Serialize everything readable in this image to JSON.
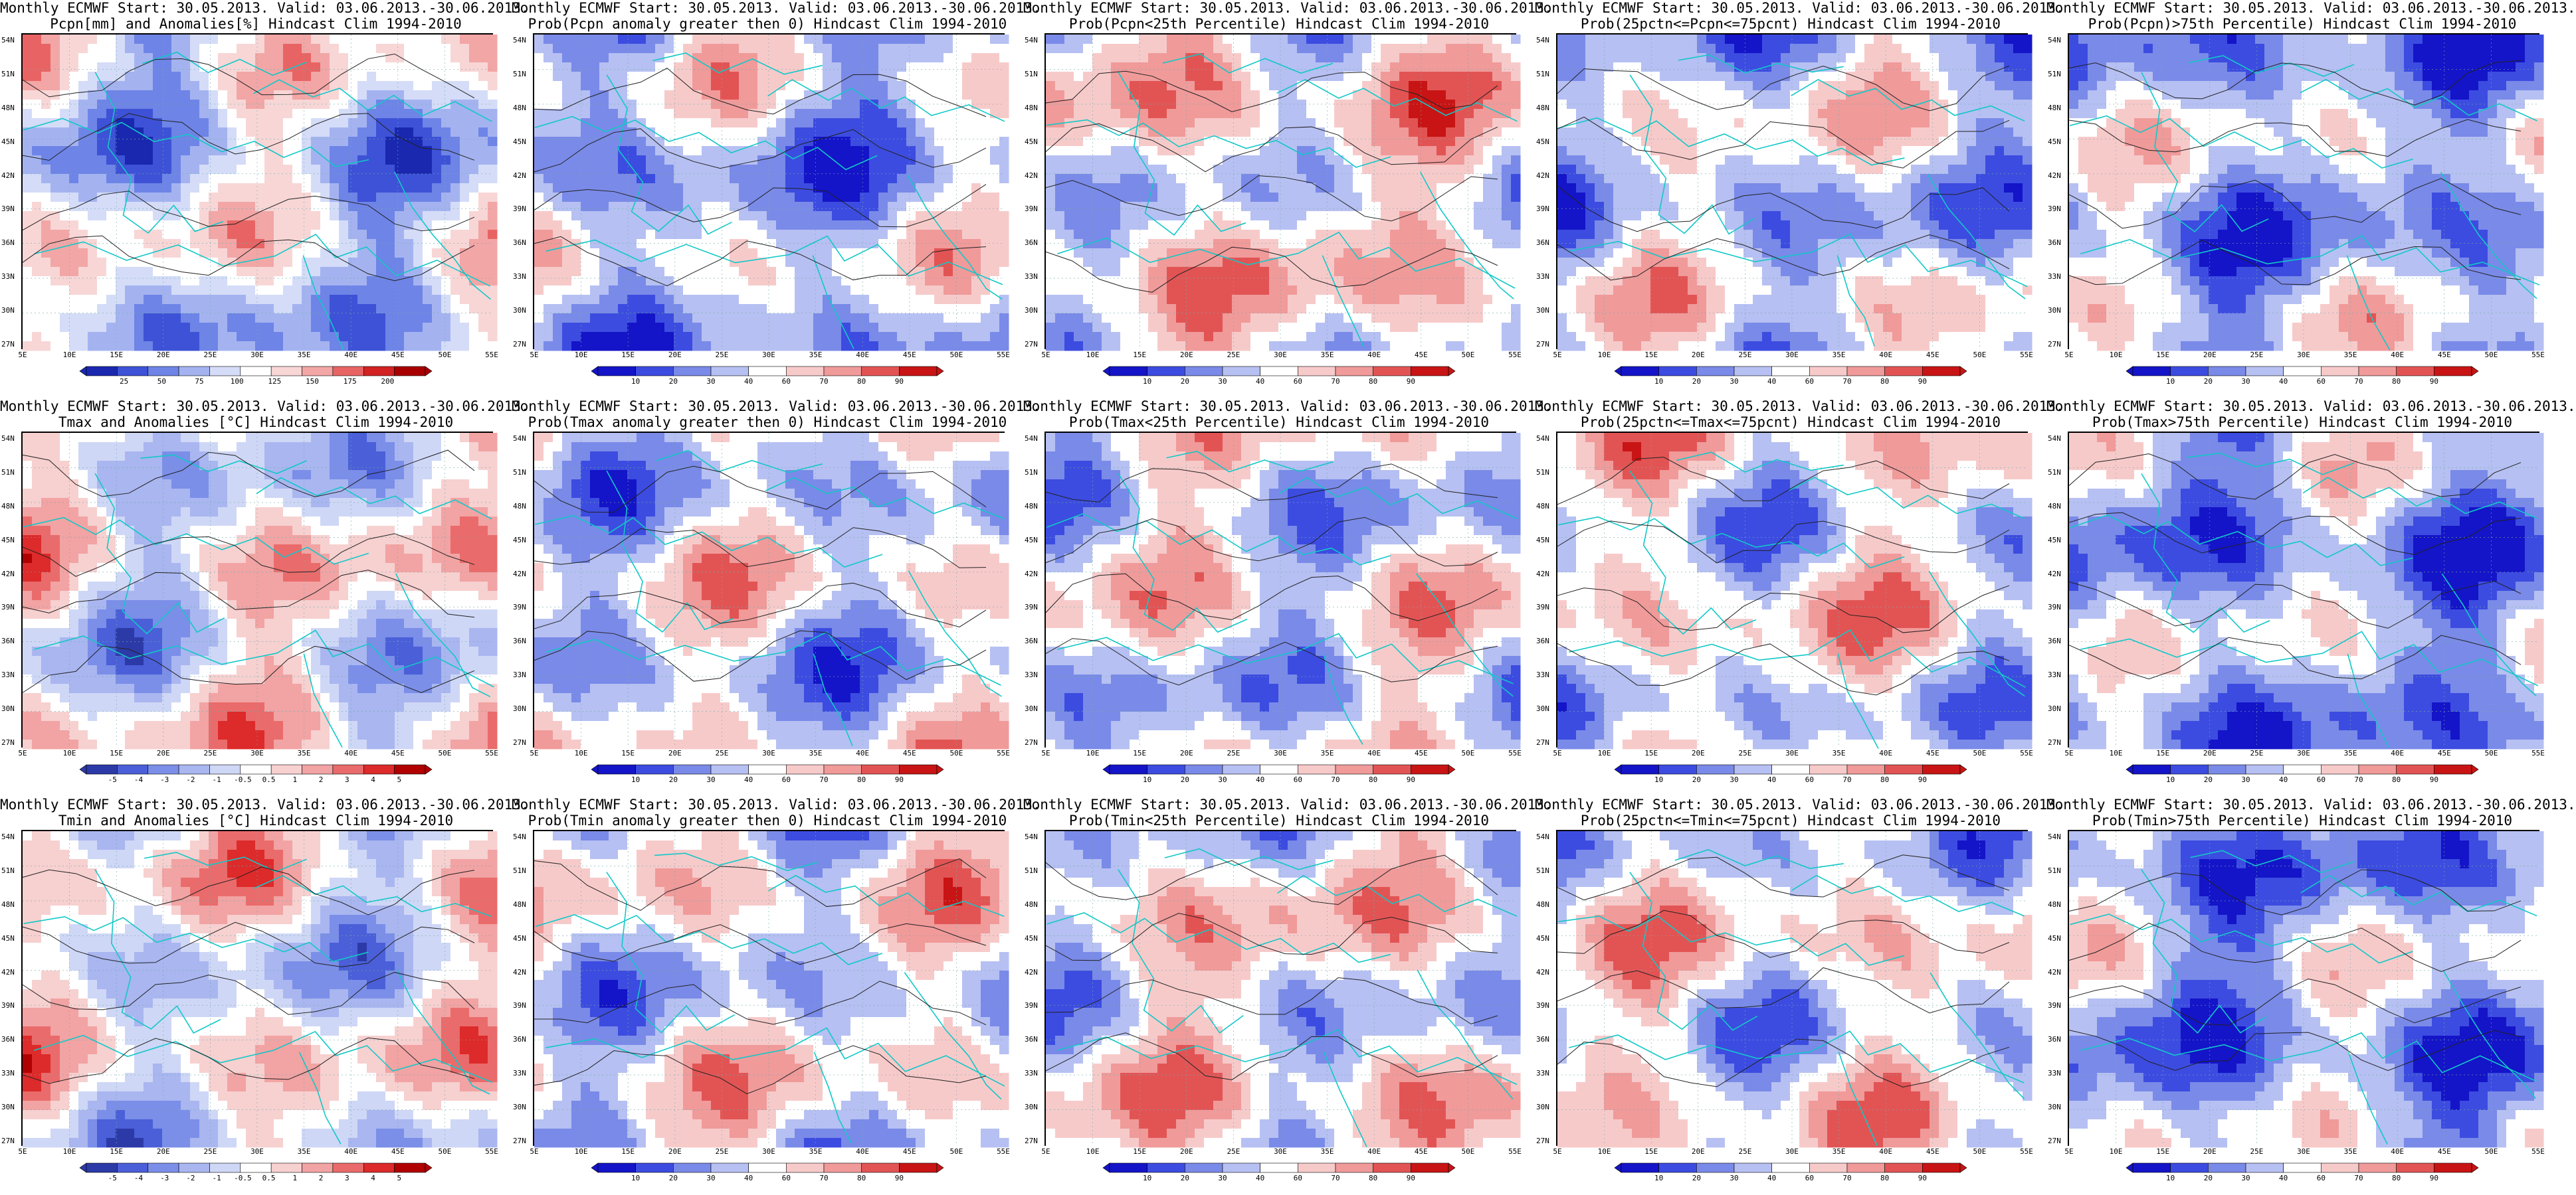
{
  "lat_ticks": [
    "54N",
    "51N",
    "48N",
    "45N",
    "42N",
    "39N",
    "36N",
    "33N",
    "30N",
    "27N"
  ],
  "lon_ticks": [
    "5E",
    "10E",
    "15E",
    "20E",
    "25E",
    "30E",
    "35E",
    "40E",
    "45E",
    "50E",
    "55E"
  ],
  "palettes": {
    "anom": [
      "#2c3aa8",
      "#4a5fd8",
      "#7b8ee8",
      "#a9b6f0",
      "#cfd7f6",
      "#ffffff",
      "#f7d0d0",
      "#f2a3a3",
      "#ea6b6b",
      "#dd2a2a",
      "#b00000"
    ],
    "prob": [
      "#1414c8",
      "#3c4ce0",
      "#7a8ae8",
      "#b6c0f2",
      "#ffffff",
      "#f7caca",
      "#f09a9a",
      "#e25454",
      "#c81414"
    ],
    "pcpn": [
      "#1a28b0",
      "#3d52d6",
      "#6e84e6",
      "#a4b3f0",
      "#d4dcf8",
      "#ffffff",
      "#f8d6d6",
      "#f2a6a6",
      "#e86464",
      "#d22222",
      "#a80000"
    ]
  },
  "panels": [
    {
      "line1": "Monthly ECMWF Start: 30.05.2013. Valid: 03.06.2013.-30.06.2013.",
      "line2": "Pcpn[mm] and Anomalies[%] Hindcast Clim 1994-2010",
      "palette": "pcpn",
      "cbar_labels": [
        "25",
        "50",
        "75",
        "100",
        "125",
        "150",
        "175",
        "200"
      ],
      "bias": -0.2
    },
    {
      "line1": "Monthly ECMWF Start: 30.05.2013. Valid: 03.06.2013.-30.06.2013.",
      "line2": "Prob(Pcpn anomaly greater then 0) Hindcast Clim 1994-2010",
      "palette": "prob",
      "cbar_labels": [
        "10",
        "20",
        "30",
        "40",
        "60",
        "70",
        "80",
        "90"
      ],
      "bias": -0.25
    },
    {
      "line1": "Monthly ECMWF Start: 30.05.2013. Valid: 03.06.2013.-30.06.2013.",
      "line2": "Prob(Pcpn<25th Percentile) Hindcast Clim 1994-2010",
      "palette": "prob",
      "cbar_labels": [
        "10",
        "20",
        "30",
        "40",
        "60",
        "70",
        "80",
        "90"
      ],
      "bias": 0.1
    },
    {
      "line1": "Monthly ECMWF Start: 30.05.2013. Valid: 03.06.2013.-30.06.2013.",
      "line2": "Prob(25pctn<=Pcpn<=75pcnt) Hindcast Clim 1994-2010",
      "palette": "prob",
      "cbar_labels": [
        "10",
        "20",
        "30",
        "40",
        "60",
        "70",
        "80",
        "90"
      ],
      "bias": -0.15
    },
    {
      "line1": "Monthly ECMWF Start: 30.05.2013. Valid: 03.06.2013.-30.06.2013.",
      "line2": "Prob(Pcpn)>75th Percentile) Hindcast Clim 1994-2010",
      "palette": "prob",
      "cbar_labels": [
        "10",
        "20",
        "30",
        "40",
        "60",
        "70",
        "80",
        "90"
      ],
      "bias": -0.3
    },
    {
      "line1": "Monthly ECMWF Start: 30.05.2013. Valid: 03.06.2013.-30.06.2013.",
      "line2": "Tmax and Anomalies [°C] Hindcast Clim 1994-2010",
      "palette": "anom",
      "cbar_labels": [
        "-5",
        "-4",
        "-3",
        "-2",
        "-1",
        "-0.5",
        "0.5",
        "1",
        "2",
        "3",
        "4",
        "5"
      ],
      "bias": -0.05
    },
    {
      "line1": "Monthly ECMWF Start: 30.05.2013. Valid: 03.06.2013.-30.06.2013.",
      "line2": "Prob(Tmax anomaly greater then 0) Hindcast Clim 1994-2010",
      "palette": "prob",
      "cbar_labels": [
        "10",
        "20",
        "30",
        "40",
        "60",
        "70",
        "80",
        "90"
      ],
      "bias": -0.1
    },
    {
      "line1": "Monthly ECMWF Start: 30.05.2013. Valid: 03.06.2013.-30.06.2013.",
      "line2": "Prob(Tmax<25th Percentile) Hindcast Clim 1994-2010",
      "palette": "prob",
      "cbar_labels": [
        "10",
        "20",
        "30",
        "40",
        "60",
        "70",
        "80",
        "90"
      ],
      "bias": -0.05
    },
    {
      "line1": "Monthly ECMWF Start: 30.05.2013. Valid: 03.06.2013.-30.06.2013.",
      "line2": "Prob(25pctn<=Tmax<=75pcnt) Hindcast Clim 1994-2010",
      "palette": "prob",
      "cbar_labels": [
        "10",
        "20",
        "30",
        "40",
        "60",
        "70",
        "80",
        "90"
      ],
      "bias": 0.0
    },
    {
      "line1": "Monthly ECMWF Start: 30.05.2013. Valid: 03.06.2013.-30.06.2013.",
      "line2": "Prob(Tmax>75th Percentile) Hindcast Clim 1994-2010",
      "palette": "prob",
      "cbar_labels": [
        "10",
        "20",
        "30",
        "40",
        "60",
        "70",
        "80",
        "90"
      ],
      "bias": -0.35
    },
    {
      "line1": "Monthly ECMWF Start: 30.05.2013. Valid: 03.06.2013.-30.06.2013.",
      "line2": "Tmin and Anomalies [°C] Hindcast Clim 1994-2010",
      "palette": "anom",
      "cbar_labels": [
        "-5",
        "-4",
        "-3",
        "-2",
        "-1",
        "-0.5",
        "0.5",
        "1",
        "2",
        "3",
        "4",
        "5"
      ],
      "bias": -0.05
    },
    {
      "line1": "Monthly ECMWF Start: 30.05.2013. Valid: 03.06.2013.-30.06.2013.",
      "line2": "Prob(Tmin anomaly greater then 0) Hindcast Clim 1994-2010",
      "palette": "prob",
      "cbar_labels": [
        "10",
        "20",
        "30",
        "40",
        "60",
        "70",
        "80",
        "90"
      ],
      "bias": -0.05
    },
    {
      "line1": "Monthly ECMWF Start: 30.05.2013. Valid: 03.06.2013.-30.06.2013.",
      "line2": "Prob(Tmin<25th Percentile) Hindcast Clim 1994-2010",
      "palette": "prob",
      "cbar_labels": [
        "10",
        "20",
        "30",
        "40",
        "60",
        "70",
        "80",
        "90"
      ],
      "bias": 0.05
    },
    {
      "line1": "Monthly ECMWF Start: 30.05.2013. Valid: 03.06.2013.-30.06.2013.",
      "line2": "Prob(25pctn<=Tmin<=75pcnt) Hindcast Clim 1994-2010",
      "palette": "prob",
      "cbar_labels": [
        "10",
        "20",
        "30",
        "40",
        "60",
        "70",
        "80",
        "90"
      ],
      "bias": 0.0
    },
    {
      "line1": "Monthly ECMWF Start: 30.05.2013. Valid: 03.06.2013.-30.06.2013.",
      "line2": "Prob(Tmin>75th Percentile) Hindcast Clim 1994-2010",
      "palette": "prob",
      "cbar_labels": [
        "10",
        "20",
        "30",
        "40",
        "60",
        "70",
        "80",
        "90"
      ],
      "bias": -0.35
    }
  ]
}
